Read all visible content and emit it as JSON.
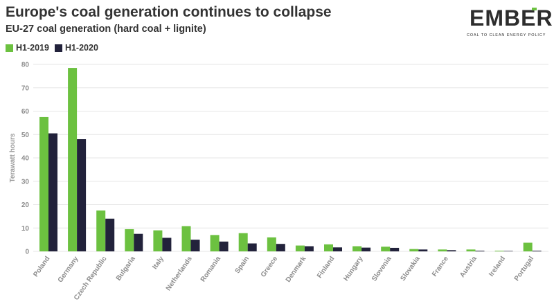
{
  "header": {
    "title": "Europe's coal generation continues to collapse",
    "subtitle": "EU-27 coal generation (hard coal + lignite)"
  },
  "logo": {
    "word": "EMBER",
    "tagline": "COAL TO CLEAN ENERGY POLICY"
  },
  "colors": {
    "h1_2019": "#6cc140",
    "h1_2020": "#22223b",
    "grid": "#e6e6e6",
    "logo_accent": "#6cc140"
  },
  "chart_data": {
    "type": "bar",
    "title": "Europe's coal generation continues to collapse",
    "subtitle": "EU-27 coal generation (hard coal + lignite)",
    "xlabel": "",
    "ylabel": "Terawatt hours",
    "ylim": [
      0,
      80
    ],
    "yticks": [
      0,
      10,
      20,
      30,
      40,
      50,
      60,
      70,
      80
    ],
    "grid": true,
    "legend_position": "top-left",
    "categories": [
      "Poland",
      "Germany",
      "Czech Republic",
      "Bulgaria",
      "Italy",
      "Netherlands",
      "Romania",
      "Spain",
      "Greece",
      "Denmark",
      "Finland",
      "Hungary",
      "Slovenia",
      "Slovakia",
      "France",
      "Austria",
      "Ireland",
      "Portugal"
    ],
    "series": [
      {
        "name": "H1-2019",
        "values": [
          57.5,
          78.5,
          17.5,
          9.5,
          9.0,
          10.8,
          7.0,
          7.8,
          6.0,
          2.5,
          3.0,
          2.2,
          2.0,
          1.0,
          0.8,
          0.8,
          0.3,
          3.7
        ]
      },
      {
        "name": "H1-2020",
        "values": [
          50.5,
          48.0,
          14.0,
          7.5,
          5.8,
          5.0,
          4.2,
          3.4,
          3.2,
          2.2,
          1.7,
          1.6,
          1.5,
          0.8,
          0.5,
          0.3,
          0.2,
          0.3
        ]
      }
    ]
  }
}
